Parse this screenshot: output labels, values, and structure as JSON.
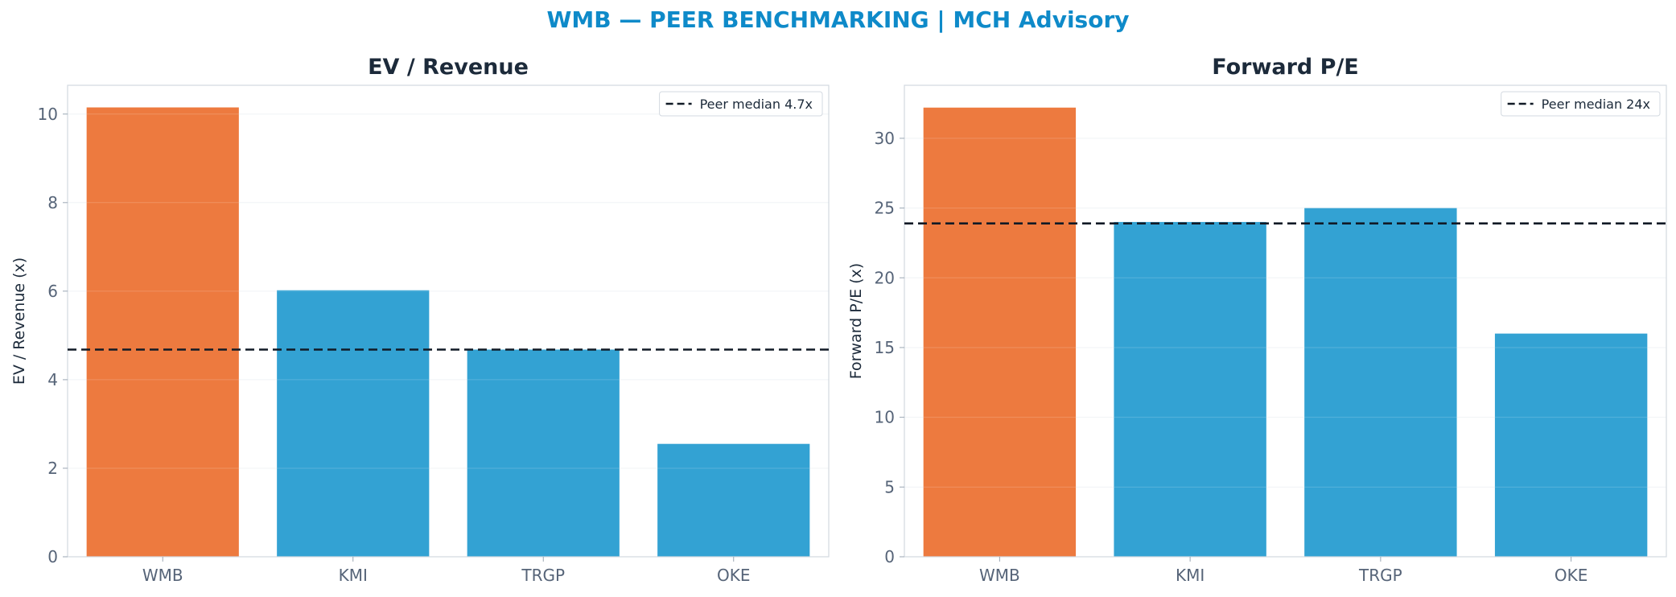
{
  "figure": {
    "suptitle": "WMB — PEER BENCHMARKING | MCH Advisory"
  },
  "colors": {
    "highlight": "#ed7a3f",
    "peer": "#33a2d3",
    "median_line": "#111a26",
    "title": "#0e8ac9"
  },
  "chart_data": [
    {
      "type": "bar",
      "title": "EV / Revenue",
      "xlabel": "",
      "ylabel": "EV / Revenue (x)",
      "categories": [
        "WMB",
        "KMI",
        "TRGP",
        "OKE"
      ],
      "values": [
        10.15,
        6.02,
        4.68,
        2.55
      ],
      "highlight_index": 0,
      "ylim": [
        0,
        10.65
      ],
      "yticks": [
        0,
        2,
        4,
        6,
        8,
        10
      ],
      "grid": true,
      "reference_line": {
        "value": 4.68,
        "label": "Peer median 4.7x",
        "style": "dashed"
      },
      "legend": "top-right"
    },
    {
      "type": "bar",
      "title": "Forward P/E",
      "xlabel": "",
      "ylabel": "Forward P/E (x)",
      "categories": [
        "WMB",
        "KMI",
        "TRGP",
        "OKE"
      ],
      "values": [
        32.2,
        24.0,
        25.0,
        16.0
      ],
      "highlight_index": 0,
      "ylim": [
        0,
        33.8
      ],
      "yticks": [
        0,
        5,
        10,
        15,
        20,
        25,
        30
      ],
      "grid": true,
      "reference_line": {
        "value": 23.9,
        "label": "Peer median 24x",
        "style": "dashed"
      },
      "legend": "top-right"
    }
  ]
}
